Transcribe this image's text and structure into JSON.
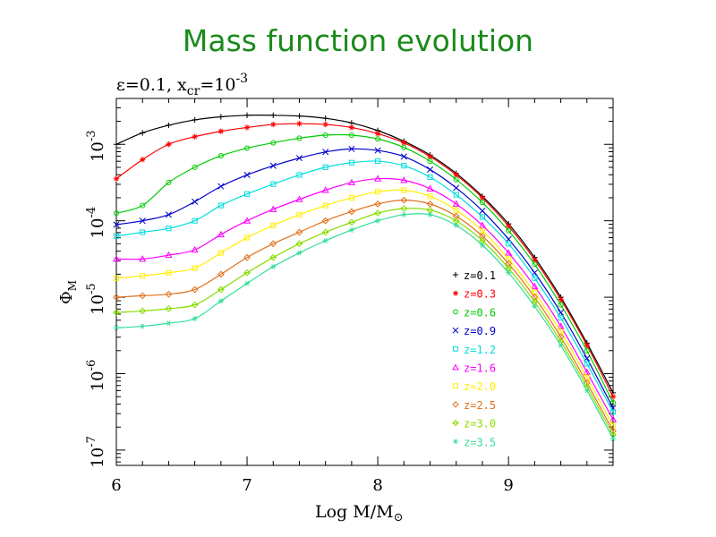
{
  "slide_title": "Mass function evolution",
  "chart_data": {
    "type": "line",
    "subtitle": "ε=0.1, x_cr=10^-3",
    "subtitle_parts": {
      "eps": "ε=0.1, x",
      "sub": "cr",
      "eq": "=10",
      "sup": "-3"
    },
    "xlabel": "Log M/M⊙",
    "xlabel_parts": {
      "main": "Log M/M",
      "sub": "⊙"
    },
    "ylabel": "Φ_M",
    "ylabel_parts": {
      "main": "Φ",
      "sub": "M"
    },
    "xlim": [
      6,
      9.8
    ],
    "ylim_log10": [
      -7.2,
      -2.4
    ],
    "yscale": "log",
    "x_ticks": [
      6,
      7,
      8,
      9
    ],
    "y_ticks": [
      {
        "base": "10",
        "exp": "-7",
        "log": -7
      },
      {
        "base": "10",
        "exp": "-6",
        "log": -6
      },
      {
        "base": "10",
        "exp": "-5",
        "log": -5
      },
      {
        "base": "10",
        "exp": "-4",
        "log": -4
      },
      {
        "base": "10",
        "exp": "-3",
        "log": -3
      }
    ],
    "legend_position": "inside-right",
    "x": [
      6.0,
      6.2,
      6.4,
      6.6,
      6.8,
      7.0,
      7.2,
      7.4,
      7.6,
      7.8,
      8.0,
      8.2,
      8.4,
      8.6,
      8.8,
      9.0,
      9.2,
      9.4,
      9.6,
      9.8
    ],
    "series": [
      {
        "name": "z=0.1",
        "marker": "+",
        "color": "#000000",
        "values_log10": [
          -3.0,
          -2.85,
          -2.75,
          -2.68,
          -2.64,
          -2.62,
          -2.62,
          -2.63,
          -2.66,
          -2.72,
          -2.82,
          -2.96,
          -3.14,
          -3.38,
          -3.68,
          -4.04,
          -4.48,
          -5.0,
          -5.6,
          -6.25
        ]
      },
      {
        "name": "z=0.3",
        "marker": "✶",
        "color": "#ff0000",
        "values_log10": [
          -3.45,
          -3.2,
          -3.0,
          -2.9,
          -2.83,
          -2.78,
          -2.74,
          -2.73,
          -2.74,
          -2.78,
          -2.86,
          -2.98,
          -3.16,
          -3.4,
          -3.7,
          -4.07,
          -4.51,
          -5.03,
          -5.63,
          -6.3
        ]
      },
      {
        "name": "z=0.6",
        "marker": "○",
        "color": "#00cc00",
        "values_log10": [
          -3.9,
          -3.8,
          -3.5,
          -3.3,
          -3.15,
          -3.05,
          -2.98,
          -2.92,
          -2.88,
          -2.88,
          -2.93,
          -3.04,
          -3.22,
          -3.46,
          -3.76,
          -4.13,
          -4.57,
          -5.1,
          -5.7,
          -6.38
        ]
      },
      {
        "name": "z=0.9",
        "marker": "×",
        "color": "#0000cc",
        "values_log10": [
          -4.05,
          -4.0,
          -3.92,
          -3.75,
          -3.55,
          -3.4,
          -3.28,
          -3.18,
          -3.1,
          -3.06,
          -3.08,
          -3.16,
          -3.33,
          -3.57,
          -3.87,
          -4.24,
          -4.68,
          -5.2,
          -5.8,
          -6.45
        ]
      },
      {
        "name": "z=1.2",
        "marker": "□",
        "color": "#00dddd",
        "values_log10": [
          -4.2,
          -4.15,
          -4.1,
          -4.0,
          -3.8,
          -3.65,
          -3.52,
          -3.4,
          -3.3,
          -3.24,
          -3.22,
          -3.28,
          -3.43,
          -3.66,
          -3.95,
          -4.3,
          -4.75,
          -5.27,
          -5.87,
          -6.5
        ]
      },
      {
        "name": "z=1.6",
        "marker": "△",
        "color": "#ff00ff",
        "values_log10": [
          -4.5,
          -4.5,
          -4.45,
          -4.38,
          -4.18,
          -4.0,
          -3.85,
          -3.72,
          -3.6,
          -3.5,
          -3.45,
          -3.47,
          -3.58,
          -3.78,
          -4.06,
          -4.42,
          -4.86,
          -5.38,
          -5.98,
          -6.6
        ]
      },
      {
        "name": "z=2.0",
        "marker": "□",
        "color": "#ffee00",
        "values_log10": [
          -4.75,
          -4.72,
          -4.68,
          -4.62,
          -4.42,
          -4.22,
          -4.06,
          -3.92,
          -3.8,
          -3.7,
          -3.62,
          -3.6,
          -3.68,
          -3.86,
          -4.13,
          -4.5,
          -4.94,
          -5.45,
          -6.05,
          -6.68
        ]
      },
      {
        "name": "z=2.5",
        "marker": "◇",
        "color": "#e0701a",
        "values_log10": [
          -5.0,
          -4.98,
          -4.96,
          -4.9,
          -4.7,
          -4.48,
          -4.3,
          -4.15,
          -4.0,
          -3.88,
          -3.78,
          -3.73,
          -3.78,
          -3.94,
          -4.2,
          -4.56,
          -5.0,
          -5.52,
          -6.12,
          -6.75
        ]
      },
      {
        "name": "z=3.0",
        "marker": "◈",
        "color": "#88dd00",
        "values_log10": [
          -5.2,
          -5.18,
          -5.15,
          -5.1,
          -4.9,
          -4.68,
          -4.48,
          -4.3,
          -4.15,
          -4.02,
          -3.9,
          -3.84,
          -3.86,
          -4.0,
          -4.26,
          -4.62,
          -5.06,
          -5.58,
          -6.17,
          -6.8
        ]
      },
      {
        "name": "z=3.5",
        "marker": "✳",
        "color": "#33dd99",
        "values_log10": [
          -5.4,
          -5.38,
          -5.34,
          -5.28,
          -5.05,
          -4.82,
          -4.6,
          -4.42,
          -4.26,
          -4.12,
          -4.0,
          -3.92,
          -3.92,
          -4.06,
          -4.32,
          -4.68,
          -5.12,
          -5.63,
          -6.22,
          -6.85
        ]
      }
    ]
  }
}
